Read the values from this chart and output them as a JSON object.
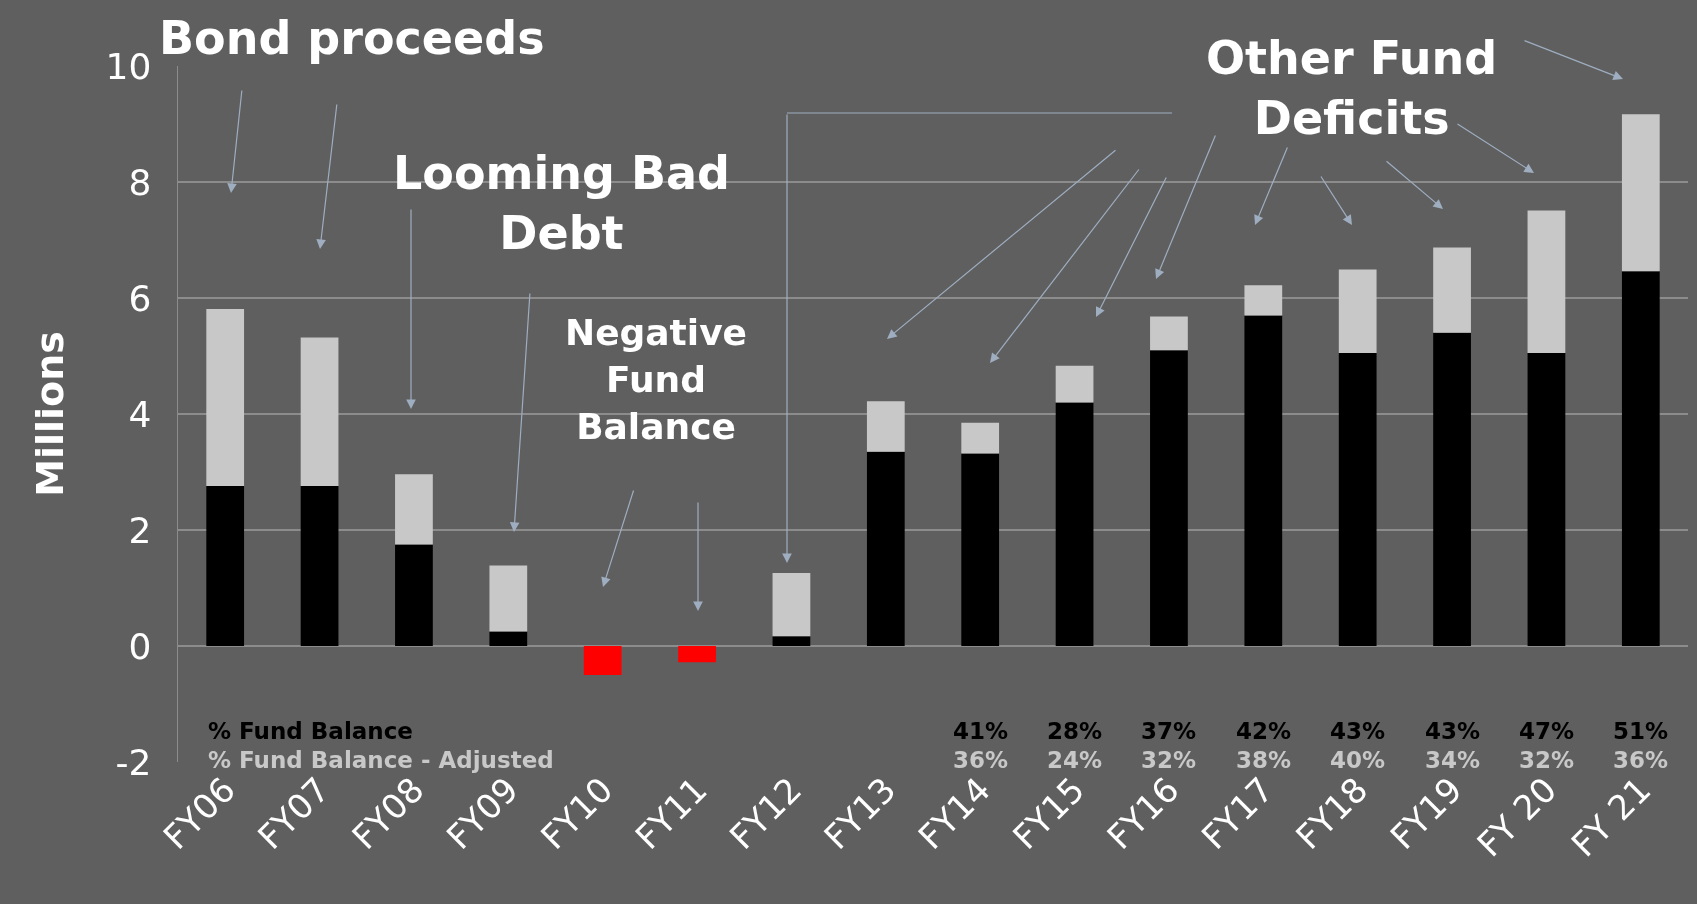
{
  "chart_data": {
    "type": "bar",
    "ylabel": "Millions",
    "stacked": true,
    "grid": "y",
    "categories": [
      "FY06",
      "FY07",
      "FY08",
      "FY09",
      "FY10",
      "FY11",
      "FY12",
      "FY13",
      "FY14",
      "FY15",
      "FY16",
      "FY17",
      "FY18",
      "FY19",
      "FY 20",
      "FY 21"
    ],
    "series": [
      {
        "color": "#000000",
        "values": [
          2.76,
          2.76,
          1.75,
          0.25,
          null,
          null,
          0.17,
          3.35,
          3.32,
          4.2,
          5.1,
          5.7,
          5.05,
          5.4,
          5.05,
          6.46
        ]
      },
      {
        "color": "#ff0000",
        "values": [
          null,
          null,
          null,
          null,
          -0.5,
          -0.28,
          null,
          null,
          null,
          null,
          null,
          null,
          null,
          null,
          null,
          null
        ]
      },
      {
        "color": "#c8c8c8",
        "values": [
          3.05,
          2.56,
          1.21,
          1.14,
          null,
          null,
          1.09,
          0.87,
          0.53,
          0.63,
          0.58,
          0.52,
          1.44,
          1.47,
          2.46,
          2.71
        ]
      }
    ],
    "ylim": [
      -2,
      10
    ],
    "yticks": [
      -2,
      0,
      2,
      4,
      6,
      8,
      10
    ],
    "annotations": [
      "Bond proceeds",
      "Looming Bad Debt",
      "Negative Fund Balance",
      "Other Fund Deficits",
      "% Fund Balance",
      "% Fund Balance - Adjusted",
      "41%",
      "28%",
      "37%",
      "42%",
      "43%",
      "43%",
      "47%",
      "51%",
      "36%",
      "24%",
      "32%",
      "38%",
      "40%",
      "34%",
      "32%",
      "36%"
    ]
  }
}
